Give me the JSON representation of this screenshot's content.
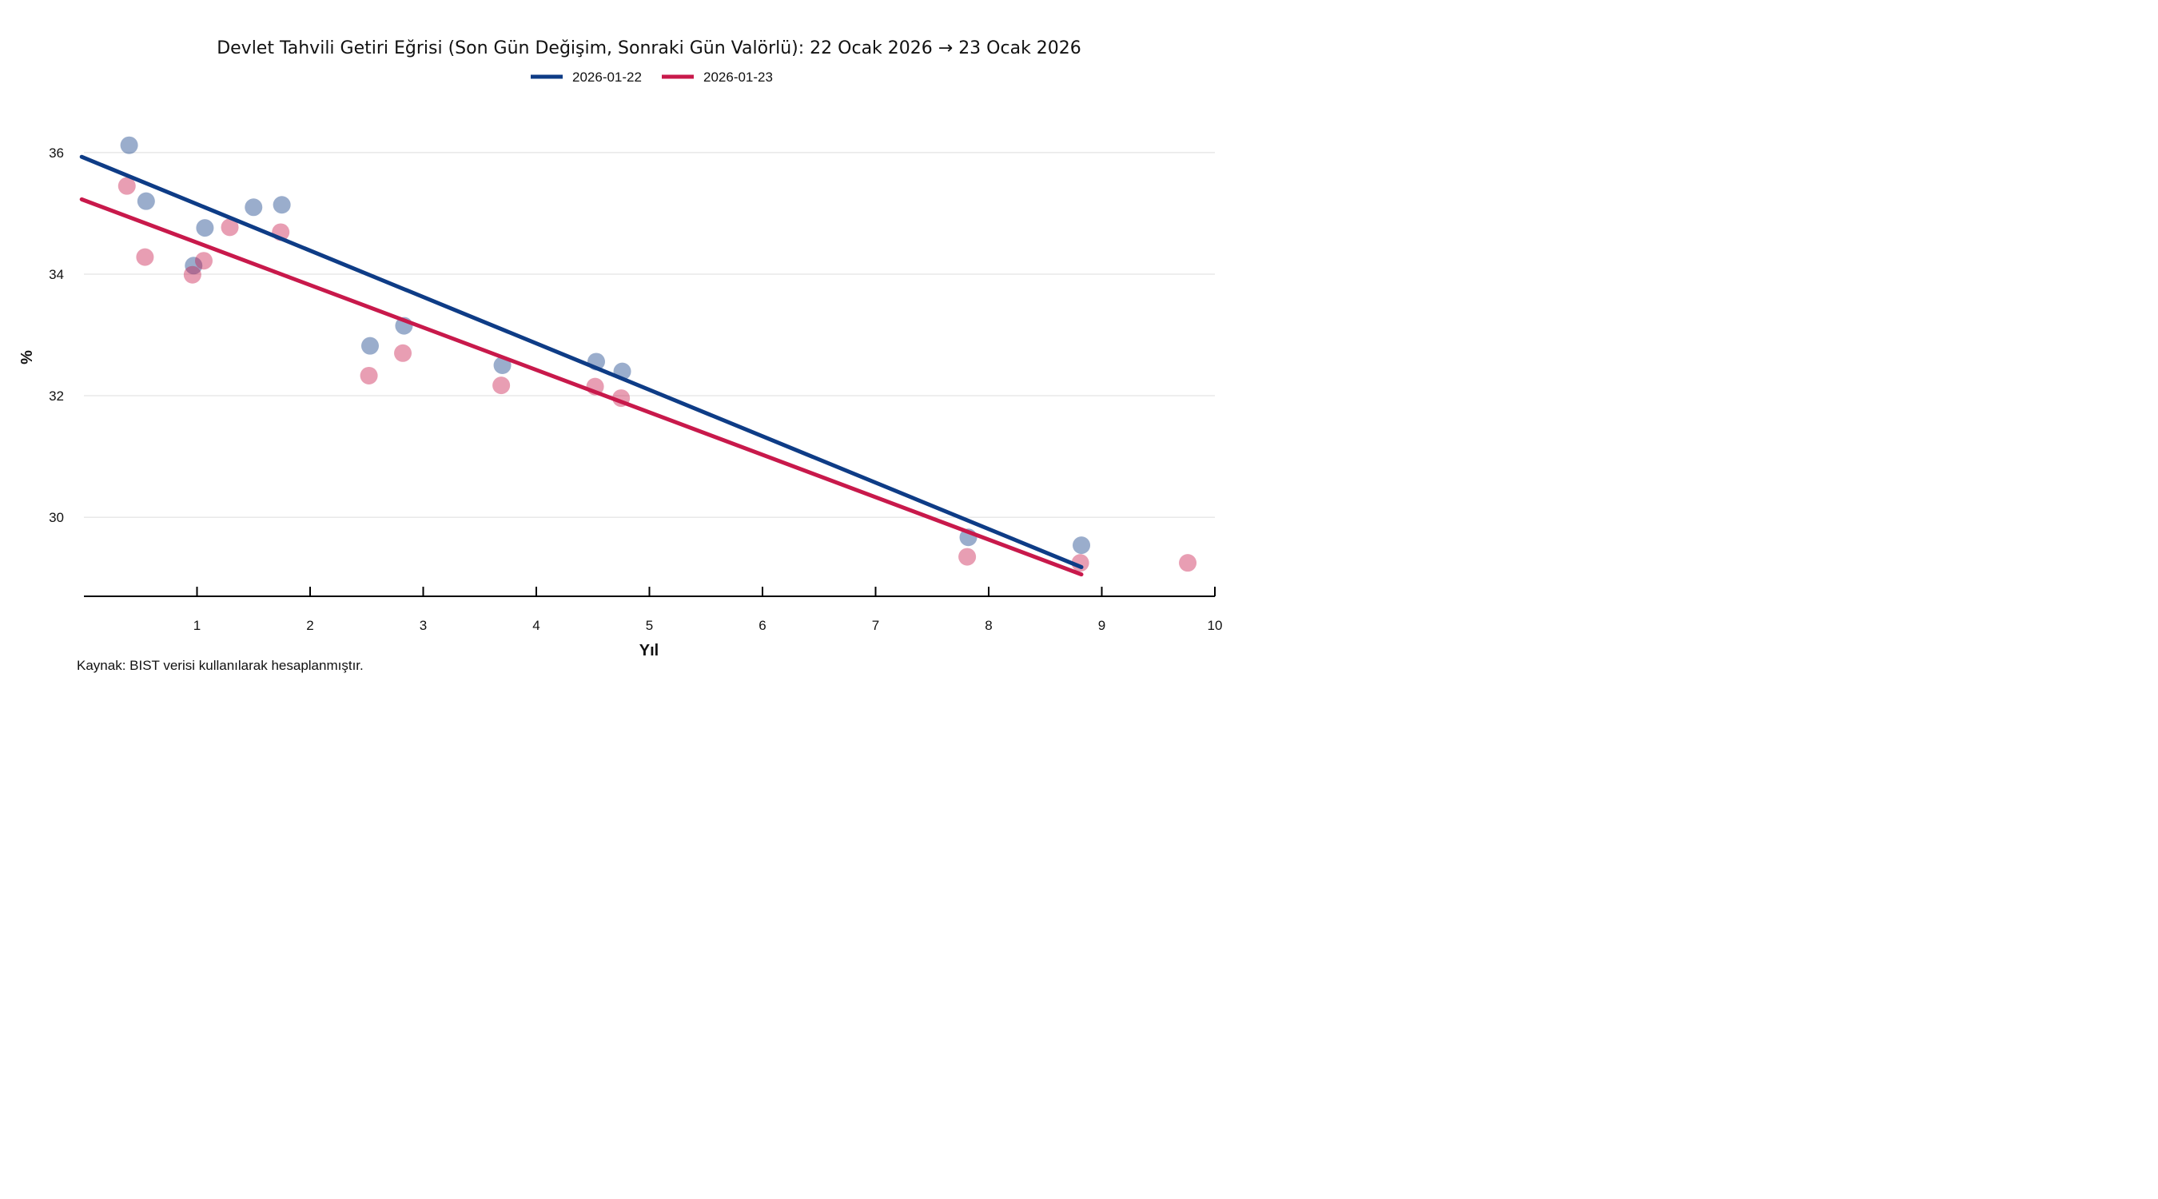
{
  "chart_data": {
    "type": "scatter",
    "title": "Devlet Tahvili Getiri Eğrisi (Son Gün Değişim, Sonraki Gün Valörlü): 22 Ocak 2026 → 23 Ocak 2026",
    "xlabel": "Yıl",
    "ylabel": "%",
    "xlim": [
      0,
      10
    ],
    "ylim": [
      28.7,
      36.8
    ],
    "xticks": [
      "1",
      "2",
      "3",
      "4",
      "5",
      "6",
      "7",
      "8",
      "9",
      "10"
    ],
    "yticks": [
      "30",
      "32",
      "34",
      "36"
    ],
    "grid": "horizontal",
    "legend_position": "top-center",
    "source": "Kaynak: BIST verisi kullanılarak hesaplanmıştır.",
    "series": [
      {
        "name": "2026-01-22",
        "color": "#0e3c86",
        "points_x": [
          0.4,
          0.55,
          0.97,
          1.07,
          1.5,
          1.75,
          2.53,
          2.83,
          3.7,
          4.53,
          4.76,
          7.82,
          8.82
        ],
        "points_y": [
          36.12,
          35.2,
          34.14,
          34.76,
          35.1,
          35.14,
          32.82,
          33.15,
          32.5,
          32.56,
          32.4,
          29.67,
          29.54
        ],
        "line_x": [
          -0.02,
          8.82
        ],
        "line_y": [
          35.93,
          29.18
        ]
      },
      {
        "name": "2026-01-23",
        "color": "#c8194b",
        "points_x": [
          0.38,
          0.54,
          0.96,
          1.06,
          1.29,
          1.74,
          2.52,
          2.82,
          3.69,
          4.52,
          4.75,
          7.81,
          8.81,
          9.76
        ],
        "points_y": [
          35.45,
          34.28,
          33.99,
          34.22,
          34.77,
          34.69,
          32.33,
          32.7,
          32.17,
          32.15,
          31.96,
          29.35,
          29.25,
          29.25
        ],
        "line_x": [
          -0.02,
          8.82
        ],
        "line_y": [
          35.23,
          29.06
        ]
      }
    ]
  }
}
